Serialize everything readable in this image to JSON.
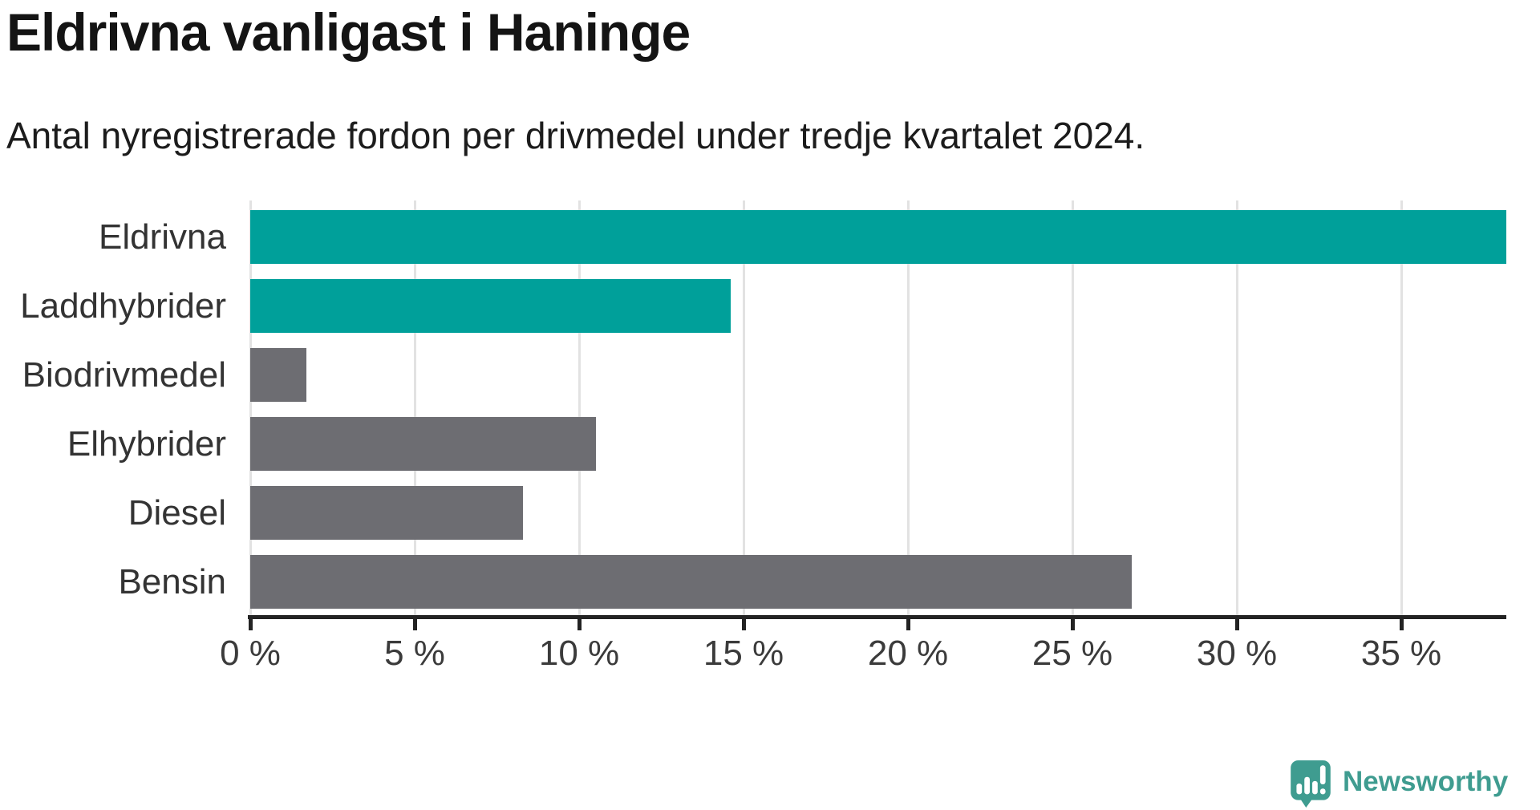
{
  "header": {
    "title": "Eldrivna vanligast i Haninge",
    "subtitle": "Antal nyregistrerade fordon per drivmedel under tredje kvartalet 2024."
  },
  "branding": {
    "logo_text": "Newsworthy",
    "logo_icon": "newsworthy-speech-bubble-bar-chart-icon",
    "logo_color": "#3f9c90"
  },
  "colors": {
    "highlight_bar": "#00a09a",
    "default_bar": "#6d6d72",
    "axis": "#232323",
    "gridline": "#e2e2e2",
    "title_text": "#141414",
    "label_text": "#333333"
  },
  "chart_data": {
    "type": "bar",
    "orientation": "horizontal",
    "title": "Eldrivna vanligast i Haninge",
    "subtitle": "Antal nyregistrerade fordon per drivmedel under tredje kvartalet 2024.",
    "categories": [
      "Eldrivna",
      "Laddhybrider",
      "Biodrivmedel",
      "Elhybrider",
      "Diesel",
      "Bensin"
    ],
    "values": [
      38.2,
      14.6,
      1.7,
      10.5,
      8.3,
      26.8
    ],
    "unit": "%",
    "highlighted_categories": [
      "Eldrivna",
      "Laddhybrider"
    ],
    "xlabel": "",
    "ylabel": "",
    "xlim": [
      0,
      38.2
    ],
    "x_ticks": [
      0,
      5,
      10,
      15,
      20,
      25,
      30,
      35
    ],
    "x_tick_labels": [
      "0 %",
      "5 %",
      "10 %",
      "15 %",
      "20 %",
      "25 %",
      "30 %",
      "35 %"
    ],
    "grid": "vertical",
    "legend": "none"
  }
}
